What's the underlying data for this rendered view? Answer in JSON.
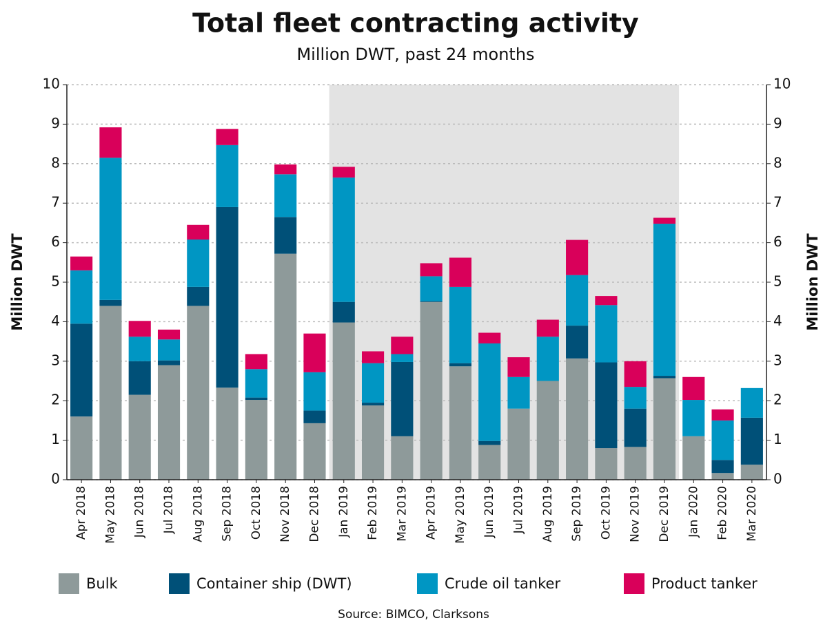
{
  "chart_data": {
    "type": "stacked_bar",
    "title": "Total fleet contracting activity",
    "subtitle": "Million DWT, past 24 months",
    "y_label": "Million DWT",
    "y2_label": "Million DWT",
    "source": "Source: BIMCO, Clarksons",
    "categories": [
      "Apr 2018",
      "May 2018",
      "Jun 2018",
      "Jul 2018",
      "Aug 2018",
      "Sep 2018",
      "Oct 2018",
      "Nov 2018",
      "Dec 2018",
      "Jan 2019",
      "Feb 2019",
      "Mar 2019",
      "Apr 2019",
      "May 2019",
      "Jun 2019",
      "Jul 2019",
      "Aug 2019",
      "Sep 2019",
      "Oct 2019",
      "Nov 2019",
      "Dec 2019",
      "Jan 2020",
      "Feb 2020",
      "Mar 2020"
    ],
    "series": [
      {
        "name": "Bulk",
        "color": "#8e9a9a",
        "values": [
          1.6,
          4.4,
          2.15,
          2.9,
          4.4,
          2.33,
          2.02,
          5.72,
          1.43,
          3.98,
          1.88,
          1.1,
          4.5,
          2.87,
          0.88,
          1.8,
          2.5,
          3.07,
          0.8,
          0.83,
          2.57,
          1.1,
          0.17,
          0.38
        ]
      },
      {
        "name": "Container ship (DWT)",
        "color": "#005078",
        "values": [
          2.35,
          0.15,
          0.85,
          0.12,
          0.48,
          4.57,
          0.06,
          0.93,
          0.32,
          0.52,
          0.07,
          1.88,
          0.02,
          0.08,
          0.1,
          0,
          0,
          0.83,
          2.17,
          0.97,
          0.06,
          0,
          0.33,
          1.19
        ]
      },
      {
        "name": "Crude oil tanker",
        "color": "#0096c3",
        "values": [
          1.35,
          3.6,
          0.62,
          0.53,
          1.2,
          1.57,
          0.72,
          1.08,
          0.97,
          3.15,
          1.0,
          0.2,
          0.63,
          1.93,
          2.47,
          0.8,
          1.12,
          1.28,
          1.45,
          0.55,
          3.85,
          0.92,
          1.0,
          0.75
        ]
      },
      {
        "name": "Product tanker",
        "color": "#d9005a",
        "values": [
          0.35,
          0.77,
          0.4,
          0.25,
          0.37,
          0.41,
          0.38,
          0.25,
          0.98,
          0.27,
          0.3,
          0.44,
          0.33,
          0.74,
          0.27,
          0.5,
          0.43,
          0.89,
          0.23,
          0.65,
          0.15,
          0.58,
          0.28,
          0
        ]
      }
    ],
    "shaded": {
      "from": "Jan 2019",
      "to": "Dec 2019"
    },
    "ylim": [
      0,
      10
    ],
    "yticks": [
      0,
      1,
      2,
      3,
      4,
      5,
      6,
      7,
      8,
      9,
      10
    ],
    "y2lim": [
      0,
      10
    ],
    "y2ticks": [
      0,
      1,
      2,
      3,
      4,
      5,
      6,
      7,
      8,
      9,
      10
    ],
    "grid": true,
    "legend": "bottom"
  }
}
